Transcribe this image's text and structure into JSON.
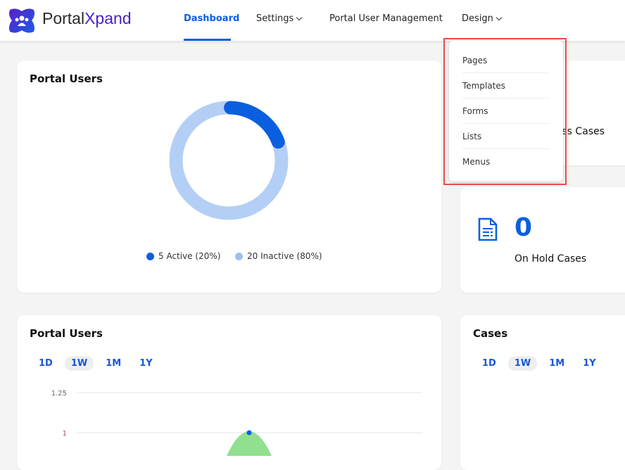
{
  "header": {
    "brand_prefix": "Portal",
    "brand_suffix": "Xpand",
    "nav": [
      {
        "label": "Dashboard",
        "active": true
      },
      {
        "label": "Settings",
        "has_dropdown": true
      },
      {
        "label": "Portal User Management"
      },
      {
        "label": "Design",
        "has_dropdown": true
      }
    ]
  },
  "design_menu": {
    "items": [
      "Pages",
      "Templates",
      "Forms",
      "Lists",
      "Menus"
    ]
  },
  "portal_users_card": {
    "title": "Portal Users",
    "active": {
      "label": "5 Active (20%)",
      "count": 5,
      "percent": 20,
      "color": "#0a5fe0"
    },
    "inactive": {
      "label": "20 Inactive (80%)",
      "count": 20,
      "percent": 80,
      "color": "#b3cff5"
    }
  },
  "in_progress_card": {
    "label": "In Progress Cases"
  },
  "on_hold_card": {
    "value": "0",
    "label": "On Hold Cases",
    "icon": "document-icon"
  },
  "portal_users_chart": {
    "title": "Portal Users",
    "ranges": [
      "1D",
      "1W",
      "1M",
      "1Y"
    ],
    "selected": "1W"
  },
  "cases_chart": {
    "title": "Cases",
    "ranges": [
      "1D",
      "1W",
      "1M",
      "1Y"
    ],
    "selected": "1W"
  },
  "chart_data": {
    "type": "area",
    "y_ticks": [
      "1.25",
      "1"
    ],
    "peak_value": 1,
    "color": "#90e090",
    "point_color": "#0a5fe0",
    "grid": true
  }
}
